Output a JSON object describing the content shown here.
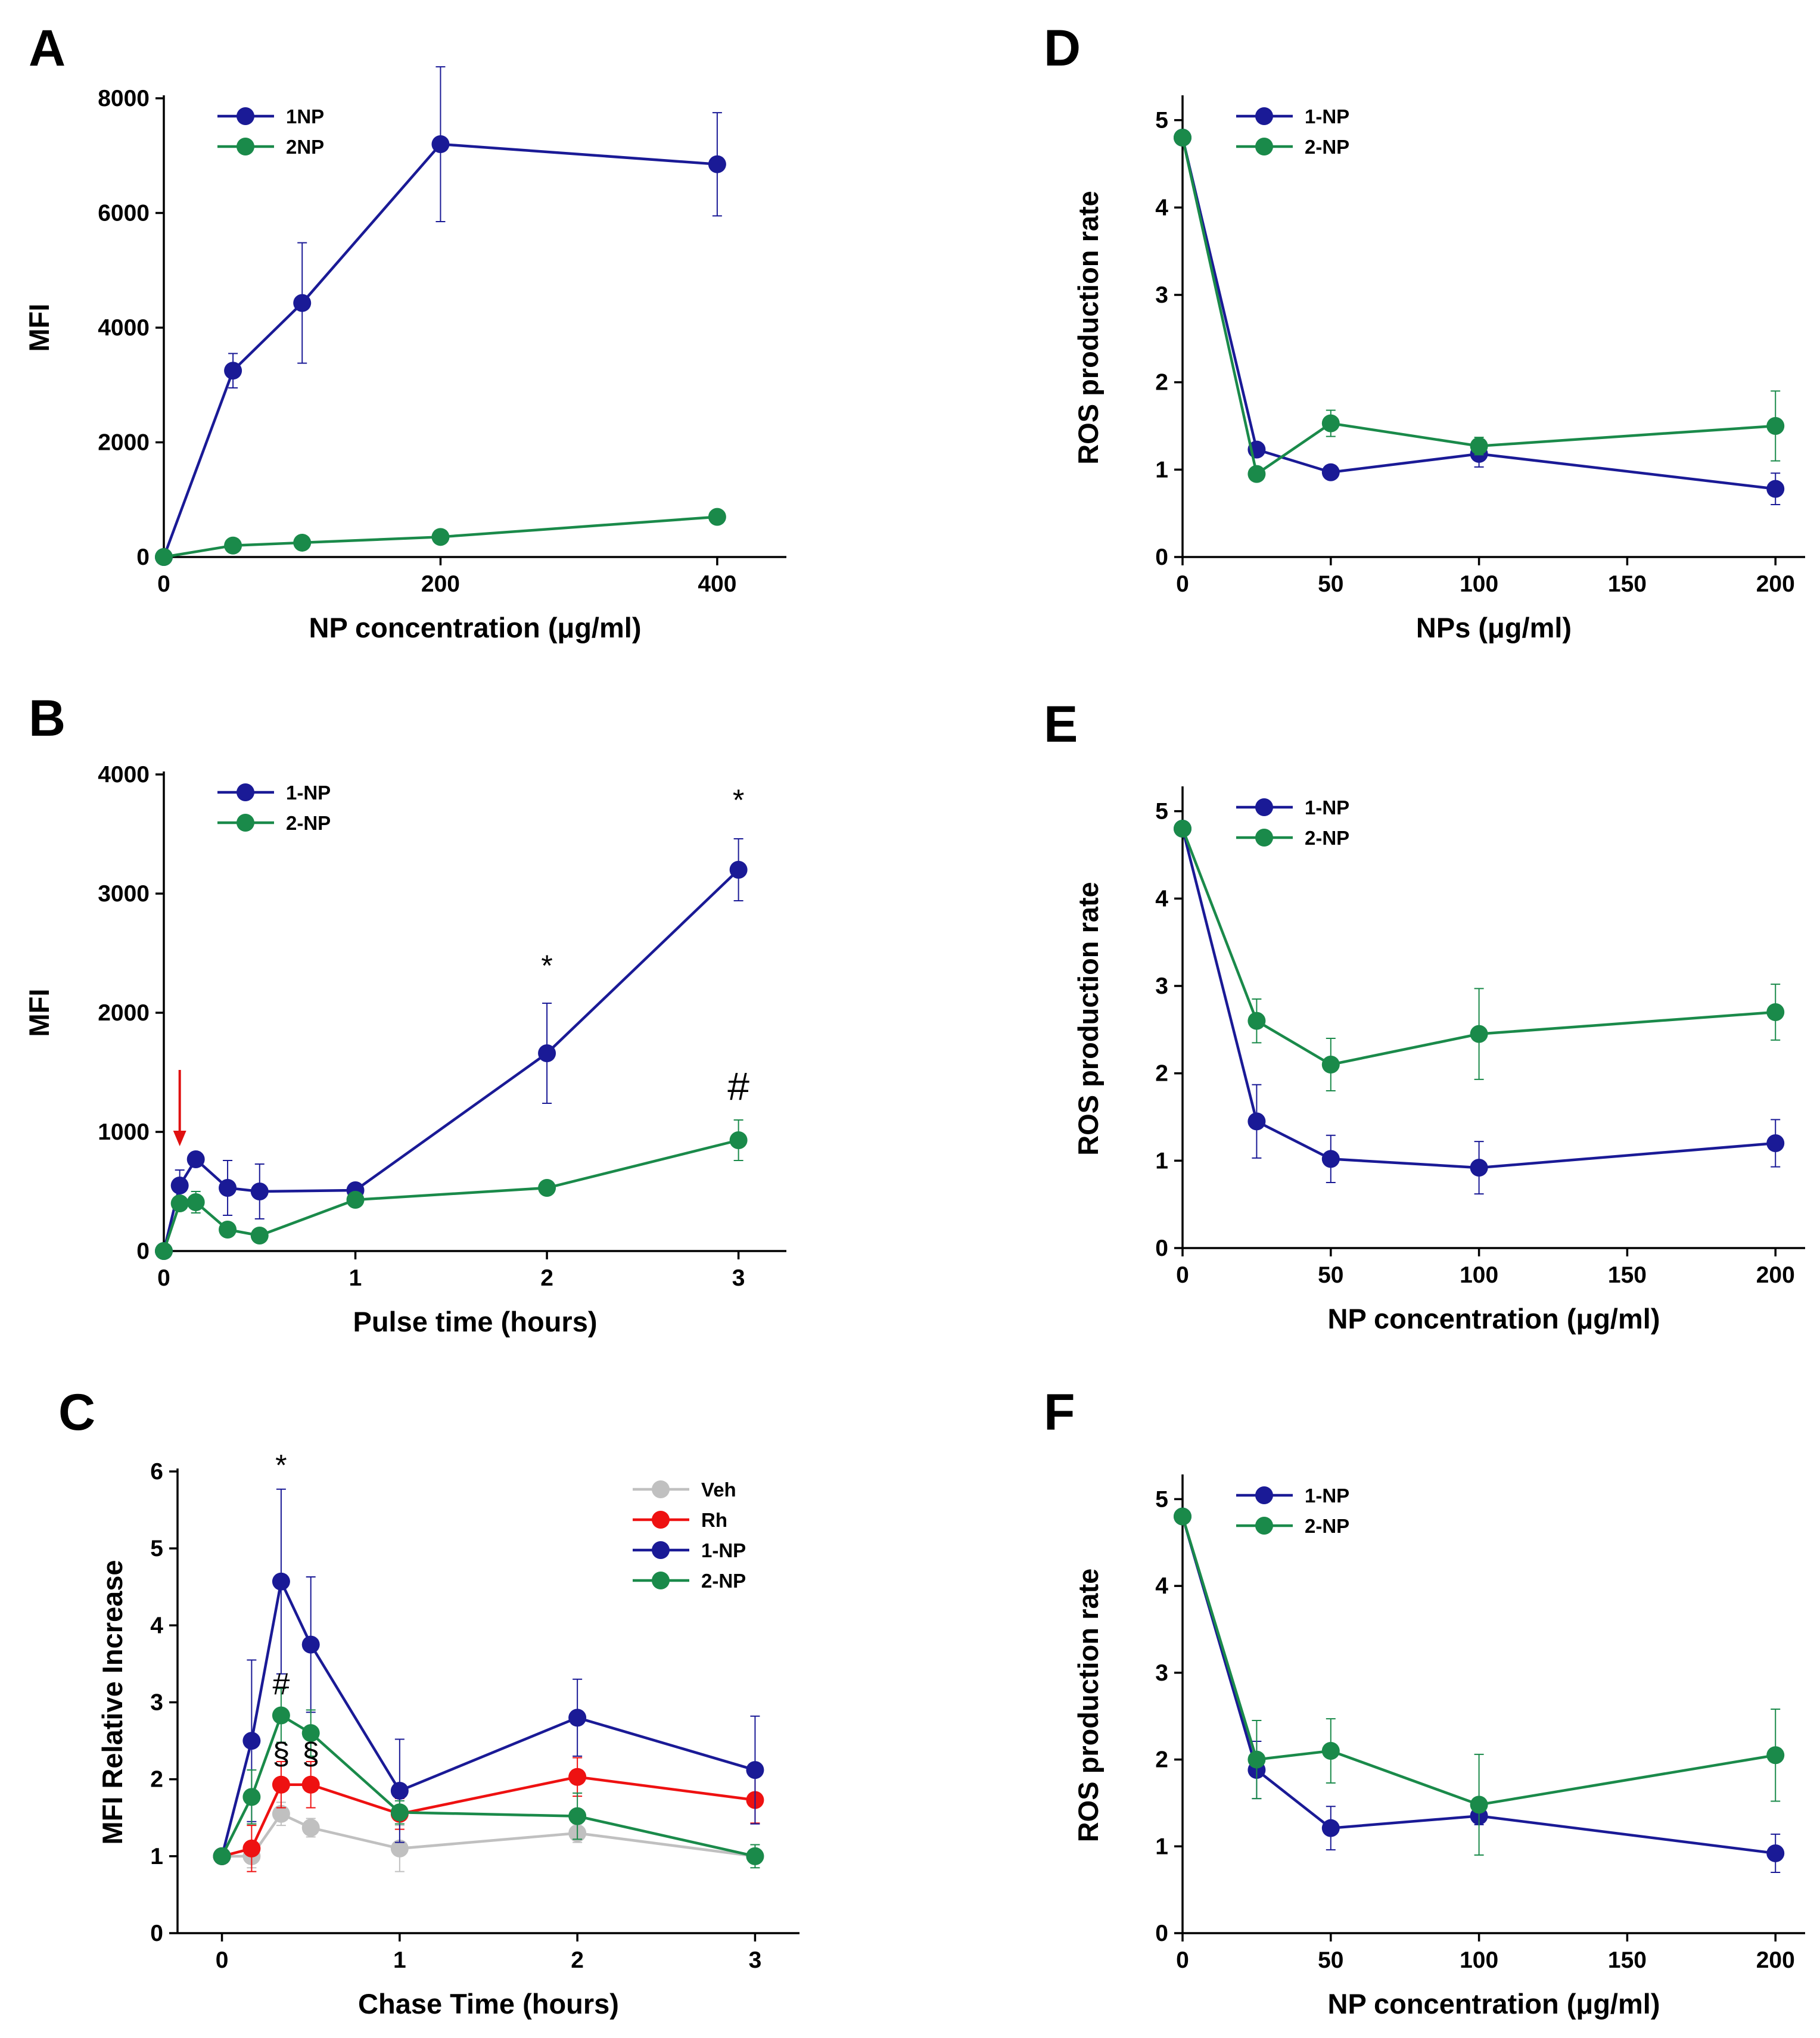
{
  "colors": {
    "1NP": "#1a1a96",
    "2NP": "#1a8a4a",
    "Veh": "#c0c0c0",
    "Rh": "#ee1111",
    "arrow": "#e01010"
  },
  "chart_data": [
    {
      "id": "A",
      "type": "line",
      "panel_label": "A",
      "title": "",
      "xlabel": "NP concentration (μg/ml)",
      "ylabel": "MFI",
      "xlim": [
        0,
        450
      ],
      "ylim": [
        0,
        8000
      ],
      "xticks": [
        0,
        200,
        400
      ],
      "yticks": [
        0,
        2000,
        4000,
        6000,
        8000
      ],
      "legend_position": "top-left",
      "series": [
        {
          "name": "1NP",
          "color_key": "1NP",
          "x": [
            0,
            50,
            100,
            200,
            400
          ],
          "y": [
            0,
            3250,
            4430,
            7200,
            6850
          ],
          "err": [
            0,
            300,
            1050,
            1350,
            900
          ]
        },
        {
          "name": "2NP",
          "color_key": "2NP",
          "x": [
            0,
            50,
            100,
            200,
            400
          ],
          "y": [
            0,
            200,
            250,
            350,
            700
          ],
          "err": [
            0,
            30,
            30,
            40,
            60
          ]
        }
      ],
      "annotations": []
    },
    {
      "id": "B",
      "type": "line",
      "panel_label": "B",
      "title": "",
      "xlabel": "Pulse time (hours)",
      "ylabel": "MFI",
      "xlim": [
        0,
        3.25
      ],
      "ylim": [
        0,
        4000
      ],
      "xticks": [
        0,
        1,
        2,
        3
      ],
      "yticks": [
        0,
        1000,
        2000,
        3000,
        4000
      ],
      "legend_position": "top-left",
      "series": [
        {
          "name": "1-NP",
          "color_key": "1NP",
          "x": [
            0,
            0.083,
            0.167,
            0.333,
            0.5,
            1,
            2,
            3
          ],
          "y": [
            0,
            550,
            770,
            530,
            500,
            510,
            1660,
            3200
          ],
          "err": [
            0,
            130,
            60,
            230,
            230,
            40,
            420,
            260
          ]
        },
        {
          "name": "2-NP",
          "color_key": "2NP",
          "x": [
            0,
            0.083,
            0.167,
            0.333,
            0.5,
            1,
            2,
            3
          ],
          "y": [
            0,
            400,
            410,
            180,
            130,
            430,
            530,
            930
          ],
          "err": [
            0,
            50,
            90,
            40,
            30,
            30,
            30,
            170
          ]
        }
      ],
      "annotations": [
        {
          "text": "*",
          "x": 2,
          "y": 2310,
          "size": "small"
        },
        {
          "text": "*",
          "x": 3,
          "y": 3700,
          "size": "small"
        },
        {
          "text": "#",
          "x": 3,
          "y": 1270,
          "size": "large"
        }
      ],
      "arrow": {
        "x": 0.083,
        "y_from": 1520,
        "y_to": 880
      }
    },
    {
      "id": "C",
      "type": "line",
      "panel_label": "C",
      "title": "",
      "xlabel": "Chase Time (hours)",
      "ylabel": "MFI Relative Increase",
      "xlim": [
        -0.25,
        3.25
      ],
      "ylim": [
        0,
        6
      ],
      "xticks": [
        0,
        1,
        2,
        3
      ],
      "yticks": [
        0,
        1,
        2,
        3,
        4,
        5,
        6
      ],
      "legend_position": "top-right",
      "series": [
        {
          "name": "Veh",
          "color_key": "Veh",
          "x": [
            0,
            0.167,
            0.333,
            0.5,
            1,
            2,
            3
          ],
          "y": [
            1,
            1.0,
            1.55,
            1.37,
            1.1,
            1.3,
            1.0
          ],
          "err": [
            0,
            0.15,
            0.15,
            0.12,
            0.3,
            0.12,
            0.05
          ]
        },
        {
          "name": "Rh",
          "color_key": "Rh",
          "x": [
            0,
            0.167,
            0.333,
            0.5,
            1,
            2,
            3
          ],
          "y": [
            1,
            1.1,
            1.93,
            1.93,
            1.55,
            2.03,
            1.73
          ],
          "err": [
            0,
            0.3,
            0.3,
            0.3,
            0.2,
            0.25,
            0.3
          ]
        },
        {
          "name": "1-NP",
          "color_key": "1NP",
          "x": [
            0,
            0.167,
            0.333,
            0.5,
            1,
            2,
            3
          ],
          "y": [
            1,
            2.5,
            4.57,
            3.75,
            1.85,
            2.8,
            2.12
          ],
          "err": [
            0,
            1.05,
            1.2,
            0.88,
            0.67,
            0.5,
            0.7
          ]
        },
        {
          "name": "2-NP",
          "color_key": "2NP",
          "x": [
            0,
            0.167,
            0.333,
            0.5,
            1,
            2,
            3
          ],
          "y": [
            1,
            1.77,
            2.83,
            2.6,
            1.57,
            1.52,
            1.0
          ],
          "err": [
            0,
            0.35,
            0.35,
            0.3,
            0.15,
            0.3,
            0.15
          ]
        }
      ],
      "annotations": [
        {
          "text": "*",
          "x": 0.333,
          "y": 5.95,
          "size": "small"
        },
        {
          "text": "#",
          "x": 0.333,
          "y": 3.1,
          "size": "medium"
        },
        {
          "text": "§",
          "x": 0.333,
          "y": 2.2,
          "size": "medium"
        },
        {
          "text": "§",
          "x": 0.5,
          "y": 2.2,
          "size": "medium"
        }
      ]
    },
    {
      "id": "D",
      "type": "line",
      "panel_label": "D",
      "title": "",
      "xlabel": "NPs (μg/ml)",
      "ylabel": "ROS production rate",
      "xlim": [
        0,
        210
      ],
      "ylim": [
        0,
        5.25
      ],
      "xticks": [
        0,
        50,
        100,
        150,
        200
      ],
      "yticks": [
        0,
        1,
        2,
        3,
        4,
        5
      ],
      "legend_position": "top-left",
      "series": [
        {
          "name": "1-NP",
          "color_key": "1NP",
          "x": [
            0,
            25,
            50,
            100,
            200
          ],
          "y": [
            4.8,
            1.23,
            0.97,
            1.18,
            0.78
          ],
          "err": [
            0,
            0.08,
            0.05,
            0.15,
            0.18
          ]
        },
        {
          "name": "2-NP",
          "color_key": "2NP",
          "x": [
            0,
            25,
            50,
            100,
            200
          ],
          "y": [
            4.8,
            0.95,
            1.53,
            1.27,
            1.5
          ],
          "err": [
            0,
            0.05,
            0.15,
            0.1,
            0.4
          ]
        }
      ],
      "annotations": []
    },
    {
      "id": "E",
      "type": "line",
      "panel_label": "E",
      "title": "",
      "xlabel": "NP concentration (μg/ml)",
      "ylabel": "ROS production rate",
      "xlim": [
        0,
        210
      ],
      "ylim": [
        0,
        5.25
      ],
      "xticks": [
        0,
        50,
        100,
        150,
        200
      ],
      "yticks": [
        0,
        1,
        2,
        3,
        4,
        5
      ],
      "legend_position": "top-left",
      "series": [
        {
          "name": "1-NP",
          "color_key": "1NP",
          "x": [
            0,
            25,
            50,
            100,
            200
          ],
          "y": [
            4.8,
            1.45,
            1.02,
            0.92,
            1.2
          ],
          "err": [
            0,
            0.42,
            0.27,
            0.3,
            0.27
          ]
        },
        {
          "name": "2-NP",
          "color_key": "2NP",
          "x": [
            0,
            25,
            50,
            100,
            200
          ],
          "y": [
            4.8,
            2.6,
            2.1,
            2.45,
            2.7
          ],
          "err": [
            0,
            0.25,
            0.3,
            0.52,
            0.32
          ]
        }
      ],
      "annotations": []
    },
    {
      "id": "F",
      "type": "line",
      "panel_label": "F",
      "title": "",
      "xlabel": "NP concentration (μg/ml)",
      "ylabel": "ROS production rate",
      "xlim": [
        0,
        210
      ],
      "ylim": [
        0,
        5.25
      ],
      "xticks": [
        0,
        50,
        100,
        150,
        200
      ],
      "yticks": [
        0,
        1,
        2,
        3,
        4,
        5
      ],
      "legend_position": "top-left",
      "series": [
        {
          "name": "1-NP",
          "color_key": "1NP",
          "x": [
            0,
            25,
            50,
            100,
            200
          ],
          "y": [
            4.8,
            1.88,
            1.21,
            1.35,
            0.92
          ],
          "err": [
            0,
            0.33,
            0.25,
            0.1,
            0.22
          ]
        },
        {
          "name": "2-NP",
          "color_key": "2NP",
          "x": [
            0,
            25,
            50,
            100,
            200
          ],
          "y": [
            4.8,
            2.0,
            2.1,
            1.48,
            2.05
          ],
          "err": [
            0,
            0.45,
            0.37,
            0.58,
            0.53
          ]
        }
      ],
      "annotations": []
    }
  ]
}
